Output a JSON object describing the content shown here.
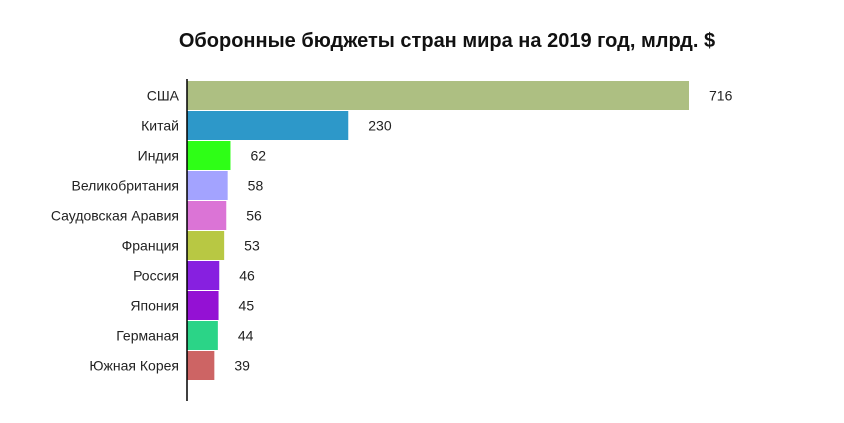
{
  "chart_data": {
    "type": "bar",
    "orientation": "horizontal",
    "title": "Оборонные бюджеты стран мира на 2019 год, млрд. $",
    "categories": [
      "США",
      "Китай",
      "Индия",
      "Великобритания",
      "Саудовская Аравия",
      "Франция",
      "Россия",
      "Япония",
      "Германая",
      "Южная Корея"
    ],
    "values": [
      716,
      230,
      62,
      58,
      56,
      53,
      46,
      45,
      44,
      39
    ],
    "value_labels": [
      "716",
      "230",
      "62",
      "58",
      "56",
      "53",
      "46",
      "45",
      "44",
      "39"
    ],
    "colors": [
      "#adbf82",
      "#2d98c9",
      "#2eff16",
      "#a3a3ff",
      "#db74d6",
      "#b8c843",
      "#8720e0",
      "#9411d4",
      "#2bd487",
      "#cd6464"
    ],
    "xlim": [
      0,
      716
    ],
    "grid": false,
    "legend": "none"
  }
}
